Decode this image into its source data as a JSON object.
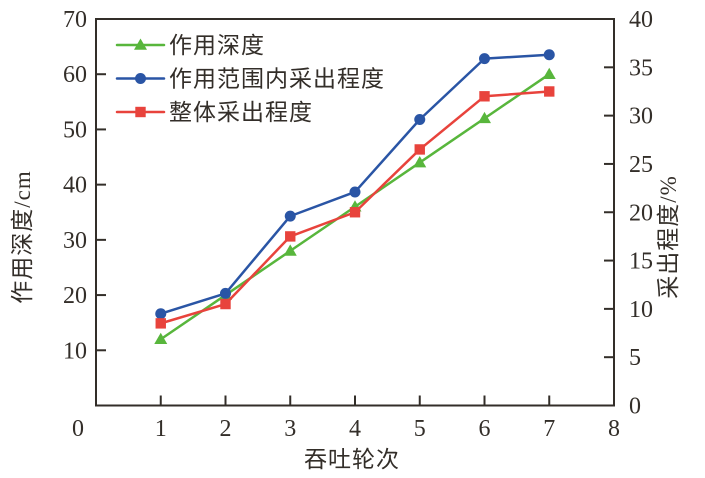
{
  "chart_data": {
    "type": "line",
    "title": "",
    "grid": false,
    "legend_position": "top-left-inside",
    "x_axis": {
      "label": "吞吐轮次",
      "min": 0,
      "max": 8,
      "tick_labels": [
        0,
        1,
        2,
        3,
        4,
        5,
        6,
        7,
        8
      ],
      "ticks_with_marks": [
        1,
        2,
        3,
        4,
        5,
        6,
        7
      ]
    },
    "y_left": {
      "label": "作用深度/cm",
      "min": 0,
      "max": 70,
      "tick_labels": [
        10,
        20,
        30,
        40,
        50,
        60,
        70
      ]
    },
    "y_right": {
      "label": "采出程度/%",
      "min": 0,
      "max": 40,
      "tick_labels": [
        0,
        5,
        10,
        15,
        20,
        25,
        30,
        35,
        40
      ]
    },
    "x": [
      1,
      2,
      3,
      4,
      5,
      6,
      7
    ],
    "series": [
      {
        "name": "作用深度",
        "axis": "left",
        "marker": "triangle",
        "color": "#58B63C",
        "values": [
          12,
          20,
          28,
          36,
          44,
          52,
          60
        ]
      },
      {
        "name": "作用范围内采出程度",
        "axis": "right",
        "marker": "circle",
        "color": "#2A55A5",
        "values": [
          9.5,
          11.6,
          19.6,
          22.1,
          29.6,
          35.9,
          36.3
        ]
      },
      {
        "name": "整体采出程度",
        "axis": "right",
        "marker": "square",
        "color": "#E8433C",
        "values": [
          8.5,
          10.5,
          17.5,
          20,
          26.5,
          32,
          32.5
        ]
      }
    ]
  },
  "colors": {
    "axis": "#332E29",
    "background": "#FFFFFF"
  }
}
